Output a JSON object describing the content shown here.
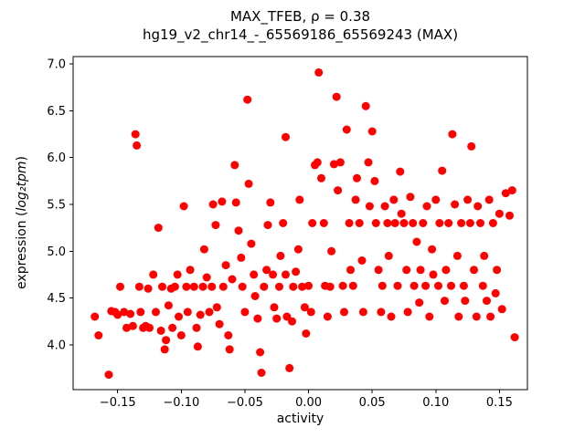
{
  "chart": {
    "title_line1": "MAX_TFEB, ρ = 0.38",
    "title_line2": "hg19_v2_chr14_-_65569186_65569243 (MAX)",
    "xlabel": "activity",
    "ylabel_parts": {
      "prefix": "expression (",
      "math": "log₂tpm",
      "suffix": ")"
    }
  },
  "chart_data": {
    "type": "scatter",
    "title": "MAX_TFEB, ρ = 0.38\nhg19_v2_chr14_-_65569186_65569243 (MAX)",
    "xlabel": "activity",
    "ylabel": "expression (log2tpm)",
    "correlation_rho": 0.38,
    "marker_color": "#ff0000",
    "grid": false,
    "xlim": [
      -0.185,
      0.172
    ],
    "ylim": [
      3.52,
      7.08
    ],
    "xticks": {
      "values": [
        -0.15,
        -0.1,
        -0.05,
        0.0,
        0.05,
        0.1,
        0.15
      ],
      "labels": [
        "−0.15",
        "−0.10",
        "−0.05",
        "0.00",
        "0.05",
        "0.10",
        "0.15"
      ]
    },
    "yticks": {
      "values": [
        4.0,
        4.5,
        5.0,
        5.5,
        6.0,
        6.5,
        7.0
      ],
      "labels": [
        "4.0",
        "4.5",
        "5.0",
        "5.5",
        "6.0",
        "6.5",
        "7.0"
      ]
    },
    "points": [
      [
        -0.168,
        4.3
      ],
      [
        -0.165,
        4.1
      ],
      [
        -0.157,
        3.68
      ],
      [
        -0.155,
        4.36
      ],
      [
        -0.152,
        4.35
      ],
      [
        -0.15,
        4.32
      ],
      [
        -0.148,
        4.62
      ],
      [
        -0.145,
        4.35
      ],
      [
        -0.143,
        4.18
      ],
      [
        -0.14,
        4.33
      ],
      [
        -0.138,
        4.2
      ],
      [
        -0.136,
        6.25
      ],
      [
        -0.135,
        6.13
      ],
      [
        -0.133,
        4.62
      ],
      [
        -0.132,
        4.35
      ],
      [
        -0.13,
        4.18
      ],
      [
        -0.128,
        4.2
      ],
      [
        -0.126,
        4.6
      ],
      [
        -0.125,
        4.18
      ],
      [
        -0.122,
        4.75
      ],
      [
        -0.12,
        4.35
      ],
      [
        -0.118,
        5.25
      ],
      [
        -0.116,
        4.15
      ],
      [
        -0.115,
        4.62
      ],
      [
        -0.113,
        3.95
      ],
      [
        -0.112,
        4.05
      ],
      [
        -0.11,
        4.42
      ],
      [
        -0.108,
        4.6
      ],
      [
        -0.107,
        4.18
      ],
      [
        -0.105,
        4.62
      ],
      [
        -0.103,
        4.75
      ],
      [
        -0.102,
        4.3
      ],
      [
        -0.1,
        4.1
      ],
      [
        -0.098,
        5.48
      ],
      [
        -0.096,
        4.62
      ],
      [
        -0.095,
        4.35
      ],
      [
        -0.093,
        4.8
      ],
      [
        -0.09,
        4.62
      ],
      [
        -0.088,
        4.18
      ],
      [
        -0.087,
        3.98
      ],
      [
        -0.085,
        4.32
      ],
      [
        -0.083,
        4.62
      ],
      [
        -0.082,
        5.02
      ],
      [
        -0.08,
        4.72
      ],
      [
        -0.078,
        4.35
      ],
      [
        -0.076,
        4.62
      ],
      [
        -0.075,
        5.5
      ],
      [
        -0.073,
        5.28
      ],
      [
        -0.072,
        4.4
      ],
      [
        -0.07,
        4.22
      ],
      [
        -0.068,
        5.53
      ],
      [
        -0.067,
        4.62
      ],
      [
        -0.065,
        4.85
      ],
      [
        -0.063,
        4.1
      ],
      [
        -0.062,
        3.95
      ],
      [
        -0.06,
        4.7
      ],
      [
        -0.058,
        5.92
      ],
      [
        -0.057,
        5.52
      ],
      [
        -0.055,
        5.22
      ],
      [
        -0.053,
        4.93
      ],
      [
        -0.052,
        4.62
      ],
      [
        -0.05,
        4.35
      ],
      [
        -0.048,
        6.62
      ],
      [
        -0.047,
        5.72
      ],
      [
        -0.045,
        5.08
      ],
      [
        -0.043,
        4.75
      ],
      [
        -0.042,
        4.52
      ],
      [
        -0.04,
        4.28
      ],
      [
        -0.038,
        3.92
      ],
      [
        -0.037,
        3.7
      ],
      [
        -0.035,
        4.62
      ],
      [
        -0.033,
        4.8
      ],
      [
        -0.032,
        5.28
      ],
      [
        -0.03,
        5.52
      ],
      [
        -0.028,
        4.75
      ],
      [
        -0.027,
        4.4
      ],
      [
        -0.025,
        4.28
      ],
      [
        -0.023,
        4.62
      ],
      [
        -0.022,
        4.95
      ],
      [
        -0.02,
        5.3
      ],
      [
        -0.018,
        6.22
      ],
      [
        -0.018,
        4.75
      ],
      [
        -0.017,
        4.3
      ],
      [
        -0.015,
        3.75
      ],
      [
        -0.013,
        4.25
      ],
      [
        -0.012,
        4.62
      ],
      [
        -0.01,
        4.78
      ],
      [
        -0.008,
        5.02
      ],
      [
        -0.007,
        5.55
      ],
      [
        -0.005,
        4.62
      ],
      [
        -0.003,
        4.4
      ],
      [
        -0.002,
        4.12
      ],
      [
        0.0,
        4.63
      ],
      [
        0.002,
        4.35
      ],
      [
        0.003,
        5.3
      ],
      [
        0.005,
        5.92
      ],
      [
        0.007,
        5.95
      ],
      [
        0.008,
        6.91
      ],
      [
        0.01,
        5.78
      ],
      [
        0.012,
        5.3
      ],
      [
        0.013,
        4.63
      ],
      [
        0.015,
        4.3
      ],
      [
        0.017,
        4.62
      ],
      [
        0.018,
        5.0
      ],
      [
        0.02,
        5.93
      ],
      [
        0.022,
        6.65
      ],
      [
        0.023,
        5.65
      ],
      [
        0.025,
        5.95
      ],
      [
        0.027,
        4.63
      ],
      [
        0.028,
        4.35
      ],
      [
        0.03,
        6.3
      ],
      [
        0.032,
        5.3
      ],
      [
        0.033,
        4.8
      ],
      [
        0.035,
        4.63
      ],
      [
        0.037,
        5.55
      ],
      [
        0.038,
        5.78
      ],
      [
        0.04,
        5.3
      ],
      [
        0.042,
        4.9
      ],
      [
        0.043,
        4.35
      ],
      [
        0.045,
        6.55
      ],
      [
        0.047,
        5.95
      ],
      [
        0.048,
        5.48
      ],
      [
        0.05,
        6.28
      ],
      [
        0.052,
        5.75
      ],
      [
        0.053,
        5.3
      ],
      [
        0.055,
        4.8
      ],
      [
        0.057,
        4.35
      ],
      [
        0.058,
        4.63
      ],
      [
        0.06,
        5.48
      ],
      [
        0.062,
        5.3
      ],
      [
        0.063,
        4.95
      ],
      [
        0.065,
        4.3
      ],
      [
        0.067,
        5.55
      ],
      [
        0.068,
        5.3
      ],
      [
        0.07,
        4.63
      ],
      [
        0.072,
        5.85
      ],
      [
        0.073,
        5.4
      ],
      [
        0.075,
        5.3
      ],
      [
        0.077,
        4.8
      ],
      [
        0.078,
        4.35
      ],
      [
        0.08,
        5.58
      ],
      [
        0.082,
        5.3
      ],
      [
        0.083,
        4.63
      ],
      [
        0.085,
        5.1
      ],
      [
        0.087,
        4.45
      ],
      [
        0.088,
        4.8
      ],
      [
        0.09,
        5.3
      ],
      [
        0.092,
        4.63
      ],
      [
        0.093,
        5.48
      ],
      [
        0.095,
        4.3
      ],
      [
        0.097,
        5.02
      ],
      [
        0.098,
        4.75
      ],
      [
        0.1,
        5.55
      ],
      [
        0.102,
        4.63
      ],
      [
        0.103,
        5.3
      ],
      [
        0.105,
        5.86
      ],
      [
        0.107,
        4.47
      ],
      [
        0.108,
        4.8
      ],
      [
        0.11,
        5.3
      ],
      [
        0.112,
        4.63
      ],
      [
        0.113,
        6.25
      ],
      [
        0.115,
        5.5
      ],
      [
        0.117,
        4.95
      ],
      [
        0.118,
        4.3
      ],
      [
        0.12,
        5.3
      ],
      [
        0.122,
        4.63
      ],
      [
        0.123,
        4.47
      ],
      [
        0.125,
        5.55
      ],
      [
        0.127,
        5.3
      ],
      [
        0.128,
        6.12
      ],
      [
        0.13,
        4.8
      ],
      [
        0.132,
        4.3
      ],
      [
        0.133,
        5.48
      ],
      [
        0.135,
        5.3
      ],
      [
        0.137,
        4.63
      ],
      [
        0.138,
        4.95
      ],
      [
        0.14,
        4.47
      ],
      [
        0.142,
        5.55
      ],
      [
        0.143,
        4.3
      ],
      [
        0.145,
        5.3
      ],
      [
        0.147,
        4.55
      ],
      [
        0.148,
        4.8
      ],
      [
        0.15,
        5.4
      ],
      [
        0.152,
        4.38
      ],
      [
        0.155,
        5.62
      ],
      [
        0.158,
        5.38
      ],
      [
        0.16,
        5.65
      ],
      [
        0.162,
        4.08
      ]
    ]
  }
}
